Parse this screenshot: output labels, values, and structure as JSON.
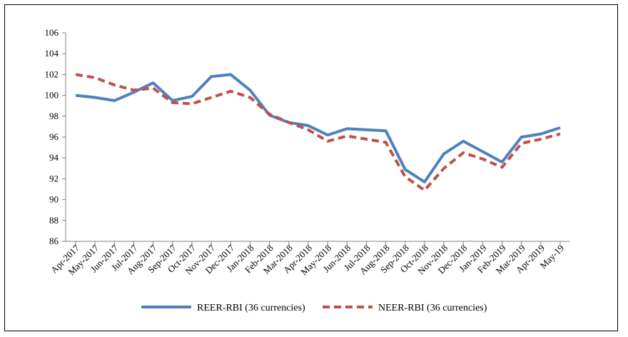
{
  "chart_data": {
    "type": "line",
    "categories": [
      "Apr-2017",
      "May-2017",
      "Jun-2017",
      "Jul-2017",
      "Aug-2017",
      "Sep-2017",
      "Oct-2017",
      "Nov-2017",
      "Dec-2017",
      "Jan-2018",
      "Feb-2018",
      "Mar-2018",
      "Apr-2018",
      "May-2018",
      "Jun-2018",
      "Jul-2018",
      "Aug-2018",
      "Sep-2018",
      "Oct-2018",
      "Nov-2018",
      "Dec-2018",
      "Jan-2019",
      "Feb-2019",
      "Mar-2019",
      "Apr-2019",
      "May-19"
    ],
    "series": [
      {
        "name": "REER-RBI (36 currencies)",
        "color": "#4F81BD",
        "style": "solid",
        "values": [
          100.0,
          99.8,
          99.5,
          100.3,
          101.2,
          99.5,
          99.9,
          101.8,
          102.0,
          100.5,
          98.1,
          97.4,
          97.1,
          96.2,
          96.8,
          96.7,
          96.6,
          92.9,
          91.7,
          94.4,
          95.6,
          94.6,
          93.6,
          96.0,
          96.3,
          96.9
        ]
      },
      {
        "name": "NEER-RBI (36 currencies)",
        "color": "#C0504D",
        "style": "dashed",
        "values": [
          102.0,
          101.7,
          101.0,
          100.5,
          100.7,
          99.3,
          99.2,
          99.8,
          100.4,
          99.8,
          98.2,
          97.4,
          96.7,
          95.6,
          96.1,
          95.8,
          95.5,
          92.2,
          90.9,
          93.0,
          94.5,
          93.9,
          93.1,
          95.4,
          95.8,
          96.3
        ]
      }
    ],
    "yticks": [
      "106",
      "104",
      "102",
      "100",
      "98",
      "96",
      "94",
      "92",
      "90",
      "88",
      "86"
    ],
    "ylim": [
      86,
      106
    ],
    "grid": false,
    "legend_position": "bottom"
  }
}
